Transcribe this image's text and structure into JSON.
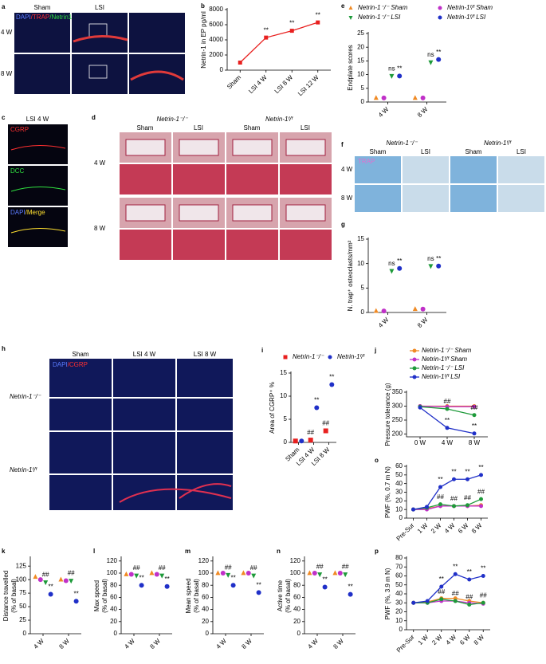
{
  "images": [
    {
      "label": "a",
      "columns": [
        "Sham",
        "LSI"
      ],
      "rows": [
        "4 W",
        "8 W"
      ],
      "stain": [
        {
          "text": "DAPI",
          "color": "#5b7cff"
        },
        {
          "text": "/TRAP",
          "color": "#ff3030"
        },
        {
          "text": "/Netrin1",
          "color": "#30e040"
        }
      ]
    },
    {
      "label": "c",
      "title": "LSI 4 W",
      "panels": [
        [
          {
            "text": "CGRP",
            "color": "#ff3030"
          }
        ],
        [
          {
            "text": "DCC",
            "color": "#30e040"
          }
        ],
        [
          {
            "text": "DAPI",
            "color": "#5b7cff"
          },
          {
            "text": "/Merge",
            "color": "#ffe030"
          }
        ]
      ]
    },
    {
      "label": "d",
      "groups": [
        "Netrin-1⁻/⁻",
        "Netrin-1ᶠ/ᶠ"
      ],
      "columns": [
        "Sham",
        "LSI",
        "Sham",
        "LSI"
      ],
      "rows": [
        "4 W",
        "8 W"
      ]
    },
    {
      "label": "f",
      "groups": [
        "Netrin-1⁻/⁻",
        "Netrin-1ᶠ/ᶠ"
      ],
      "columns": [
        "Sham",
        "LSI",
        "Sham",
        "LSI"
      ],
      "rows": [
        "4 W",
        "8 W"
      ],
      "stain": [
        {
          "text": "TRAP",
          "color": "#e070d0"
        }
      ]
    },
    {
      "label": "h",
      "columns": [
        "Sham",
        "LSI 4 W",
        "LSI 8 W"
      ],
      "rows": [
        "Netrin-1⁻/⁻",
        "Netrin-1ᶠ/ᶠ"
      ],
      "stain": [
        {
          "text": "DAPI",
          "color": "#5b7cff"
        },
        {
          "text": "/CGRP",
          "color": "#ff3030"
        }
      ]
    }
  ],
  "chart_data": [
    {
      "label": "b",
      "type": "line",
      "categories": [
        "Sham",
        "LSI 4 W",
        "LSI 8 W",
        "LSI 12 W"
      ],
      "ylabel": [
        "Netrin-1 in EP pg/ml"
      ],
      "ylim": [
        0,
        8000
      ],
      "yticks": [
        0,
        2000,
        4000,
        6000,
        8000
      ],
      "series": [
        {
          "color": "#e8201f",
          "marker": "square",
          "values": [
            1000,
            4300,
            5200,
            6300
          ],
          "marks": [
            null,
            "**",
            "**",
            "**"
          ]
        }
      ]
    },
    {
      "label": "e",
      "type": "dot",
      "legend": "top",
      "categories": [
        "4 W",
        "8 W"
      ],
      "ylabel": [
        "Endplate scores"
      ],
      "ylim": [
        0,
        25
      ],
      "yticks": [
        0,
        5,
        10,
        15,
        20,
        25
      ],
      "series": [
        {
          "name": "Netrin-1⁻/⁻ Sham",
          "color": "#f08a24",
          "marker": "triangle",
          "values": [
            1.5,
            1.5
          ]
        },
        {
          "name": "Netrin-1ᶠ/ᶠ Sham",
          "color": "#c030c8",
          "marker": "circle",
          "values": [
            1.5,
            1.5
          ]
        },
        {
          "name": "Netrin-1⁻/⁻ LSI",
          "color": "#1e9a3a",
          "marker": "triangle-down",
          "values": [
            9.5,
            14.5
          ],
          "marks": [
            "ns",
            "ns"
          ]
        },
        {
          "name": "Netrin-1ᶠ/ᶠ LSI",
          "color": "#2030c8",
          "marker": "circle",
          "values": [
            9.5,
            15.5
          ],
          "marks": [
            "**",
            "**"
          ]
        }
      ]
    },
    {
      "label": "g",
      "type": "dot",
      "categories": [
        "4 W",
        "8 W"
      ],
      "ylabel": [
        "N. trap⁺ osteoclasts/mm²"
      ],
      "ylim": [
        0,
        15
      ],
      "yticks": [
        0,
        5,
        10,
        15
      ],
      "series": [
        {
          "color": "#f08a24",
          "marker": "triangle",
          "values": [
            0.3,
            0.7
          ]
        },
        {
          "color": "#c030c8",
          "marker": "circle",
          "values": [
            0.3,
            0.7
          ]
        },
        {
          "color": "#1e9a3a",
          "marker": "triangle-down",
          "values": [
            8.5,
            9.5
          ],
          "marks": [
            "ns",
            "ns"
          ]
        },
        {
          "color": "#2030c8",
          "marker": "circle",
          "values": [
            9,
            9.5
          ],
          "marks": [
            "**",
            "**"
          ]
        }
      ]
    },
    {
      "label": "i",
      "type": "dot",
      "legend": "top",
      "categories": [
        "Sham",
        "LSI 4 W",
        "LSI 8 W"
      ],
      "ylabel": [
        "Area of CGRP⁺ %"
      ],
      "ylim": [
        0,
        15
      ],
      "yticks": [
        0,
        5,
        10,
        15
      ],
      "series": [
        {
          "name": "Netrin-1⁻/⁻",
          "color": "#e8201f",
          "marker": "square",
          "values": [
            0.3,
            0.5,
            2.5
          ],
          "marks": [
            null,
            "##",
            "##"
          ]
        },
        {
          "name": "Netrin-1ᶠ/ᶠ",
          "color": "#2030c8",
          "marker": "circle",
          "values": [
            0.3,
            7.5,
            12.5
          ],
          "marks": [
            null,
            "**",
            "**"
          ]
        }
      ]
    },
    {
      "label": "j",
      "type": "line",
      "legend": "top",
      "categories": [
        "0 W",
        "4 W",
        "8 W"
      ],
      "ylabel": [
        "Pressure tolerance (g)"
      ],
      "ylim": [
        190,
        350
      ],
      "yticks": [
        200,
        250,
        300,
        350
      ],
      "series": [
        {
          "name": "Netrin-1⁻/⁻ Sham",
          "color": "#f08a24",
          "marker": "circle",
          "values": [
            300,
            300,
            300
          ]
        },
        {
          "name": "Netrin-1ᶠ/ᶠ Sham",
          "color": "#c030c8",
          "marker": "circle",
          "values": [
            300,
            298,
            298
          ]
        },
        {
          "name": "Netrin-1⁻/⁻ LSI",
          "color": "#1e9a3a",
          "marker": "circle",
          "values": [
            298,
            290,
            268
          ],
          "marks": [
            null,
            "##",
            "##"
          ]
        },
        {
          "name": "Netrin-1ᶠ/ᶠ LSI",
          "color": "#2030c8",
          "marker": "circle",
          "values": [
            295,
            222,
            202
          ],
          "marks": [
            null,
            "**",
            "**"
          ]
        }
      ]
    },
    {
      "label": "o",
      "type": "line",
      "categories": [
        "Pre-Sur",
        "1 W",
        "2 W",
        "4 W",
        "6 W",
        "8 W"
      ],
      "ylabel": [
        "PWF (%, 0.7 m N)"
      ],
      "ylim": [
        0,
        60
      ],
      "yticks": [
        0,
        10,
        20,
        30,
        40,
        50,
        60
      ],
      "series": [
        {
          "color": "#f08a24",
          "marker": "circle",
          "values": [
            10,
            11,
            14,
            14,
            14,
            15
          ]
        },
        {
          "color": "#c030c8",
          "marker": "circle",
          "values": [
            10,
            10,
            14,
            14,
            14,
            14
          ]
        },
        {
          "color": "#1e9a3a",
          "marker": "circle",
          "values": [
            10,
            12,
            16,
            14,
            15,
            22
          ],
          "marks": [
            null,
            null,
            "##",
            "##",
            "##",
            "##"
          ]
        },
        {
          "color": "#2030c8",
          "marker": "circle",
          "values": [
            10,
            13,
            36,
            45,
            45,
            50
          ],
          "marks": [
            null,
            null,
            "**",
            "**",
            "**",
            "**"
          ]
        }
      ]
    },
    {
      "label": "k",
      "type": "dot",
      "categories": [
        "4 W",
        "8 W"
      ],
      "ylabel": [
        "Distance travelled",
        "(% of basal)"
      ],
      "ylim": [
        0,
        140
      ],
      "yticks": [
        0,
        25,
        50,
        75,
        100,
        125
      ],
      "series": [
        {
          "color": "#f08a24",
          "marker": "triangle",
          "values": [
            105,
            100
          ]
        },
        {
          "color": "#c030c8",
          "marker": "circle",
          "values": [
            100,
            98
          ]
        },
        {
          "color": "#1e9a3a",
          "marker": "triangle-down",
          "values": [
            95,
            98
          ],
          "marks": [
            "##",
            "##"
          ]
        },
        {
          "color": "#2030c8",
          "marker": "circle",
          "values": [
            73,
            60
          ],
          "marks": [
            "**",
            "**"
          ]
        }
      ]
    },
    {
      "label": "l",
      "type": "dot",
      "categories": [
        "4 W",
        "8 W"
      ],
      "ylabel": [
        "Max speed",
        "(% of basal)"
      ],
      "ylim": [
        0,
        125
      ],
      "yticks": [
        0,
        20,
        40,
        60,
        80,
        100,
        120
      ],
      "series": [
        {
          "color": "#f08a24",
          "marker": "triangle",
          "values": [
            98,
            100
          ]
        },
        {
          "color": "#c030c8",
          "marker": "circle",
          "values": [
            98,
            98
          ]
        },
        {
          "color": "#1e9a3a",
          "marker": "triangle-down",
          "values": [
            96,
            96
          ],
          "marks": [
            "##",
            "##"
          ]
        },
        {
          "color": "#2030c8",
          "marker": "circle",
          "values": [
            80,
            78
          ],
          "marks": [
            "**",
            "**"
          ]
        }
      ]
    },
    {
      "label": "m",
      "type": "dot",
      "categories": [
        "4 W",
        "8 W"
      ],
      "ylabel": [
        "Mean speed",
        "(% of basal)"
      ],
      "ylim": [
        0,
        125
      ],
      "yticks": [
        0,
        20,
        40,
        60,
        80,
        100,
        120
      ],
      "series": [
        {
          "color": "#f08a24",
          "marker": "triangle",
          "values": [
            100,
            100
          ]
        },
        {
          "color": "#c030c8",
          "marker": "circle",
          "values": [
            100,
            100
          ]
        },
        {
          "color": "#1e9a3a",
          "marker": "triangle-down",
          "values": [
            97,
            96
          ],
          "marks": [
            "##",
            "##"
          ]
        },
        {
          "color": "#2030c8",
          "marker": "circle",
          "values": [
            80,
            68
          ],
          "marks": [
            "**",
            "**"
          ]
        }
      ]
    },
    {
      "label": "n",
      "type": "dot",
      "categories": [
        "4 W",
        "8 W"
      ],
      "ylabel": [
        "Active time",
        "(% of basal)"
      ],
      "ylim": [
        0,
        125
      ],
      "yticks": [
        0,
        20,
        40,
        60,
        80,
        100,
        120
      ],
      "series": [
        {
          "color": "#f08a24",
          "marker": "triangle",
          "values": [
            100,
            100
          ]
        },
        {
          "color": "#c030c8",
          "marker": "circle",
          "values": [
            100,
            100
          ]
        },
        {
          "color": "#1e9a3a",
          "marker": "triangle-down",
          "values": [
            98,
            98
          ],
          "marks": [
            "##",
            "##"
          ]
        },
        {
          "color": "#2030c8",
          "marker": "circle",
          "values": [
            77,
            65
          ],
          "marks": [
            "**",
            "**"
          ]
        }
      ]
    },
    {
      "label": "p",
      "type": "line",
      "categories": [
        "Pre-Sur",
        "1 W",
        "2 W",
        "4 W",
        "6 W",
        "8 W"
      ],
      "ylabel": [
        "PWF (%, 3.9 m N)"
      ],
      "ylim": [
        0,
        80
      ],
      "yticks": [
        0,
        10,
        20,
        30,
        40,
        50,
        60,
        70,
        80
      ],
      "series": [
        {
          "color": "#f08a24",
          "marker": "circle",
          "values": [
            30,
            31,
            35,
            35,
            32,
            30
          ]
        },
        {
          "color": "#c030c8",
          "marker": "circle",
          "values": [
            30,
            30,
            32,
            32,
            30,
            29
          ]
        },
        {
          "color": "#1e9a3a",
          "marker": "circle",
          "values": [
            30,
            30,
            34,
            32,
            28,
            30
          ],
          "marks": [
            null,
            null,
            "##",
            "##",
            "##",
            "##"
          ]
        },
        {
          "color": "#2030c8",
          "marker": "circle",
          "values": [
            30,
            32,
            48,
            62,
            56,
            60
          ],
          "marks": [
            null,
            null,
            "**",
            "**",
            "**",
            "**"
          ]
        }
      ]
    }
  ]
}
